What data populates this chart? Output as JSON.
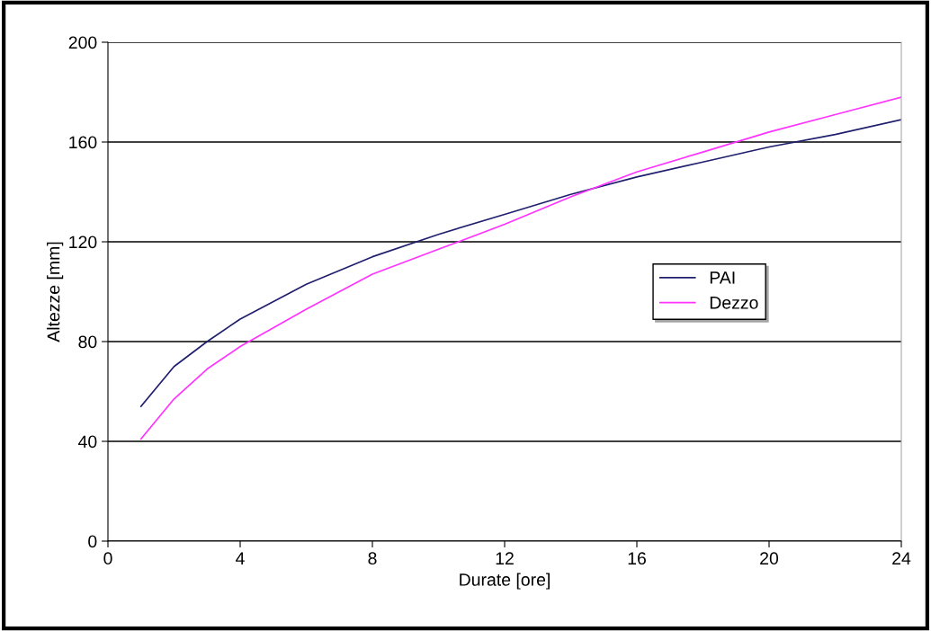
{
  "chart_data": {
    "type": "line",
    "xlabel": "Durate [ore]",
    "ylabel": "Altezze [mm]",
    "x": [
      1,
      2,
      3,
      4,
      6,
      8,
      10,
      12,
      14,
      16,
      18,
      20,
      22,
      24
    ],
    "series": [
      {
        "name": "PAI",
        "color": "#1f1f6e",
        "values": [
          54,
          70,
          80,
          89,
          103,
          114,
          123,
          131,
          139,
          146,
          152,
          158,
          163,
          169
        ]
      },
      {
        "name": "Dezzo",
        "color": "#ff33ff",
        "values": [
          41,
          57,
          69,
          78,
          93,
          107,
          117,
          127,
          138,
          148,
          156,
          164,
          171,
          178
        ]
      }
    ],
    "xlim": [
      0,
      24
    ],
    "xticks": [
      0,
      4,
      8,
      12,
      16,
      20,
      24
    ],
    "ylim": [
      0,
      200
    ],
    "yticks": [
      0,
      40,
      80,
      120,
      160,
      200
    ],
    "grid": "y",
    "legend": "right",
    "marker": "none",
    "line_style": "solid"
  }
}
